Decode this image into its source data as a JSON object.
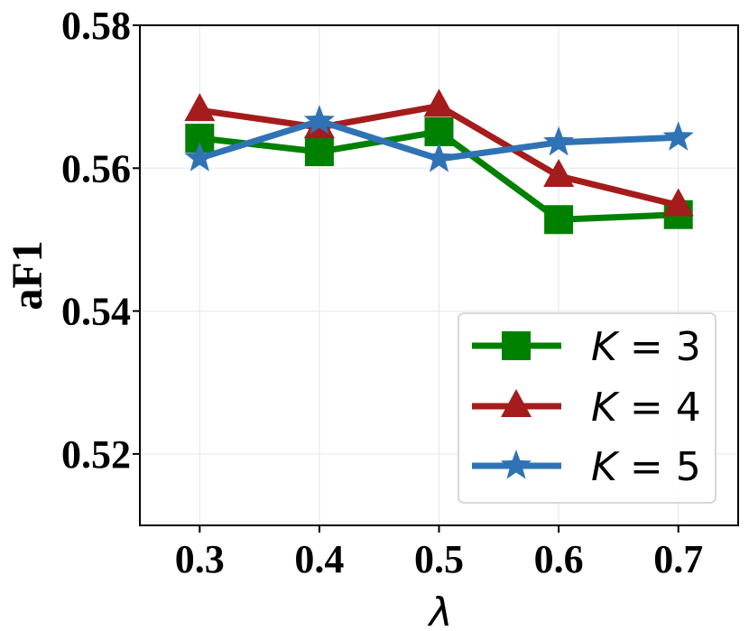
{
  "chart_data": {
    "type": "line",
    "title": "",
    "xlabel": "λ",
    "ylabel": "aF1",
    "x": [
      0.3,
      0.4,
      0.5,
      0.6,
      0.7
    ],
    "x_tick_labels": [
      "0.3",
      "0.4",
      "0.5",
      "0.6",
      "0.7"
    ],
    "xlim": [
      0.25,
      0.75
    ],
    "ylim": [
      0.51,
      0.58
    ],
    "y_ticks": [
      0.52,
      0.54,
      0.56,
      0.58
    ],
    "y_tick_labels": [
      "0.52",
      "0.54",
      "0.56",
      "0.58"
    ],
    "grid": true,
    "legend_position": "bottom-right",
    "series": [
      {
        "name": "K = 3",
        "legend_var": "K",
        "legend_rest": " = 3",
        "color": "#008000",
        "marker": "square",
        "values": [
          0.5642,
          0.5623,
          0.5651,
          0.5528,
          0.5535
        ]
      },
      {
        "name": "K = 4",
        "legend_var": "K",
        "legend_rest": " = 4",
        "color": "#a51c1c",
        "marker": "triangle",
        "values": [
          0.5681,
          0.5657,
          0.5687,
          0.5589,
          0.5548
        ]
      },
      {
        "name": "K = 5",
        "legend_var": "K",
        "legend_rest": " = 5",
        "color": "#2f73b5",
        "marker": "star",
        "values": [
          0.5614,
          0.5666,
          0.5613,
          0.5636,
          0.5643
        ]
      }
    ]
  }
}
